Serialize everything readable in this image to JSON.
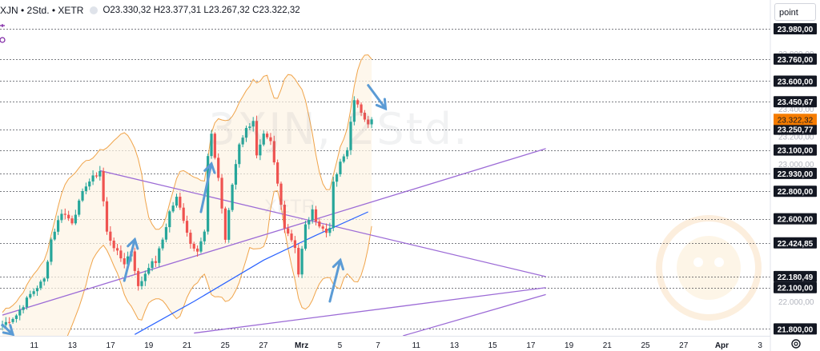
{
  "header": {
    "symbol": "XJN • 2Std. • XETR",
    "ohlc": "O23.330,32 H23.377,31 L23.267,32 C23.322,32"
  },
  "unit_selector": "point",
  "watermark": {
    "symbol": "3XJN, 2Std.",
    "sub": "XETR"
  },
  "icons": {
    "indicator": "indicator-icon",
    "settings": "gear-icon",
    "brand": "monkey-logo-icon"
  },
  "colors": {
    "up": "#26a69a",
    "down": "#ef5350",
    "bollinger": "#f0a44a",
    "bollinger_fill": "#fdf3e4",
    "sma": "#2962ff",
    "trendline": "#9c6bd6",
    "arrow": "#5b9bd5",
    "current_price": "#f57c00"
  },
  "chart_data": {
    "type": "candlestick",
    "title": "XJN • 2Std. • XETR",
    "ylim": [
      21750,
      24050
    ],
    "x_ticks": [
      "7",
      "11",
      "13",
      "17",
      "19",
      "21",
      "25",
      "27",
      "Mrz",
      "5",
      "7",
      "11",
      "13",
      "15",
      "17",
      "19",
      "21",
      "25",
      "27",
      "Apr",
      "3"
    ],
    "y_ticks": [
      "23.800,00",
      "23.400,00",
      "23.200,00",
      "23.000,00",
      "22.000,00"
    ],
    "level_labels": [
      "23.980,00",
      "23.760,00",
      "23.600,00",
      "23.450,67",
      "23.250,77",
      "23.100,00",
      "22.930,00",
      "22.800,00",
      "22.600,00",
      "22.424,85",
      "22.180,49",
      "22.100,00",
      "21.800,00"
    ],
    "levels": [
      23980,
      23760,
      23600,
      23450.67,
      23250.77,
      23100,
      22930,
      22800,
      22600,
      22424.85,
      22180.49,
      22100,
      21800
    ],
    "current_price": {
      "label": "23.322,32",
      "value": 23322.32
    },
    "legend": [],
    "anchors": [
      [
        0,
        21830
      ],
      [
        4,
        21900
      ],
      [
        8,
        22050
      ],
      [
        12,
        22160
      ],
      [
        14,
        22450
      ],
      [
        17,
        22650
      ],
      [
        20,
        22580
      ],
      [
        24,
        22850
      ],
      [
        27,
        22920
      ],
      [
        28,
        22950
      ],
      [
        30,
        22500
      ],
      [
        33,
        22350
      ],
      [
        35,
        22280
      ],
      [
        37,
        22370
      ],
      [
        39,
        22100
      ],
      [
        42,
        22260
      ],
      [
        44,
        22290
      ],
      [
        46,
        22450
      ],
      [
        48,
        22650
      ],
      [
        50,
        22750
      ],
      [
        52,
        22600
      ],
      [
        54,
        22420
      ],
      [
        56,
        22380
      ],
      [
        58,
        22500
      ],
      [
        59,
        23050
      ],
      [
        60,
        23200
      ],
      [
        62,
        22900
      ],
      [
        64,
        22450
      ],
      [
        66,
        22850
      ],
      [
        68,
        23150
      ],
      [
        70,
        23250
      ],
      [
        72,
        23320
      ],
      [
        73,
        23050
      ],
      [
        75,
        23200
      ],
      [
        77,
        23150
      ],
      [
        79,
        22850
      ],
      [
        81,
        22550
      ],
      [
        84,
        22400
      ],
      [
        85,
        22200
      ],
      [
        87,
        22550
      ],
      [
        89,
        22650
      ],
      [
        91,
        22550
      ],
      [
        93,
        22500
      ],
      [
        94,
        22550
      ],
      [
        95,
        22850
      ],
      [
        97,
        23000
      ],
      [
        99,
        23100
      ],
      [
        100,
        23320
      ],
      [
        101,
        23450
      ],
      [
        103,
        23380
      ],
      [
        105,
        23300
      ],
      [
        106,
        23322
      ]
    ],
    "sma_line": [
      [
        38,
        21760
      ],
      [
        55,
        22000
      ],
      [
        75,
        22300
      ],
      [
        90,
        22480
      ],
      [
        105,
        22650
      ]
    ],
    "trendlines": [
      {
        "from": [
          0,
          21900
        ],
        "to": [
          156,
          23110
        ]
      },
      {
        "from": [
          28,
          22950
        ],
        "to": [
          156,
          22180
        ]
      },
      {
        "from": [
          55,
          21770
        ],
        "to": [
          156,
          22100
        ]
      },
      {
        "from": [
          115,
          21750
        ],
        "to": [
          156,
          22050
        ]
      }
    ],
    "arrows": [
      {
        "from": [
          0,
          21830
        ],
        "to": [
          3,
          21760
        ],
        "dir": "down"
      },
      {
        "from": [
          35,
          22150
        ],
        "to": [
          38,
          22450
        ],
        "dir": "up"
      },
      {
        "from": [
          57,
          22650
        ],
        "to": [
          60,
          23000
        ],
        "dir": "up"
      },
      {
        "from": [
          94,
          22000
        ],
        "to": [
          97,
          22300
        ],
        "dir": "up"
      },
      {
        "from": [
          105,
          23570
        ],
        "to": [
          110,
          23400
        ],
        "dir": "down"
      }
    ]
  }
}
